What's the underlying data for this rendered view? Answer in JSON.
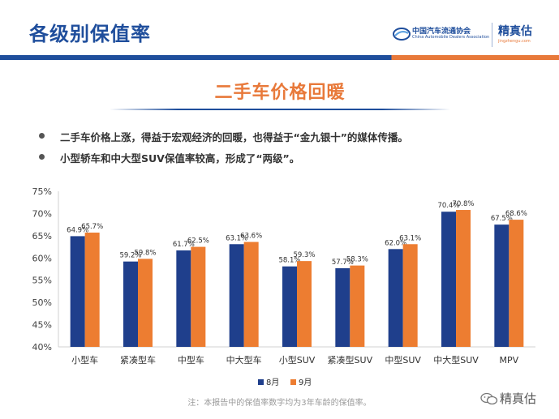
{
  "header": {
    "title": "各级别保值率",
    "cada_name": "中国汽车流通协会",
    "cada_en": "China Automobile Dealers Association",
    "jzg_name": "精真估",
    "jzg_url": "jingzhengu.com"
  },
  "banner": {
    "title": "二手车价格回暖"
  },
  "bullets": [
    "二手车价格上涨，得益于宏观经济的回暖，也得益于“金九银十”的媒体传播。",
    "小型轿车和中大型SUV保值率较高，形成了“两级”。"
  ],
  "chart_data": {
    "type": "bar",
    "categories": [
      "小型车",
      "紧凑型车",
      "中型车",
      "中大型车",
      "小型SUV",
      "紧凑型SUV",
      "中型SUV",
      "中大型SUV",
      "MPV"
    ],
    "series": [
      {
        "name": "8月",
        "values": [
          64.9,
          59.2,
          61.7,
          63.1,
          58.1,
          57.7,
          62.0,
          70.4,
          67.5
        ],
        "labels": [
          "64.9%",
          "59.2%",
          "61.7%",
          "63.1%",
          "58.1%",
          "57.7%",
          "62.0%",
          "70.4%",
          "67.5%"
        ],
        "color": "#1f3f8c"
      },
      {
        "name": "9月",
        "values": [
          65.7,
          59.8,
          62.5,
          63.6,
          59.3,
          58.3,
          63.1,
          70.8,
          68.6
        ],
        "labels": [
          "65.7%",
          "59.8%",
          "62.5%",
          "63.6%",
          "59.3%",
          "58.3%",
          "63.1%",
          "70.8%",
          "68.6%"
        ],
        "color": "#ed7d31"
      }
    ],
    "yticks": [
      40,
      45,
      50,
      55,
      60,
      65,
      70,
      75
    ],
    "ytick_labels": [
      "40%",
      "45%",
      "50%",
      "55%",
      "60%",
      "65%",
      "70%",
      "75%"
    ],
    "ylim": [
      40,
      75
    ],
    "legend_position": "bottom",
    "grid": false
  },
  "note": "注：本报告中的保值率数字均为3年车龄的保值率。",
  "watermark_label": "精真估"
}
